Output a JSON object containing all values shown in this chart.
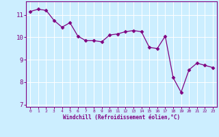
{
  "x": [
    0,
    1,
    2,
    3,
    4,
    5,
    6,
    7,
    8,
    9,
    10,
    11,
    12,
    13,
    14,
    15,
    16,
    17,
    18,
    19,
    20,
    21,
    22,
    23
  ],
  "y": [
    11.15,
    11.25,
    11.2,
    10.75,
    10.45,
    10.65,
    10.05,
    9.85,
    9.85,
    9.8,
    10.1,
    10.15,
    10.25,
    10.3,
    10.25,
    9.55,
    9.5,
    10.05,
    8.2,
    7.55,
    8.55,
    8.85,
    8.75,
    8.65
  ],
  "line_color": "#800080",
  "marker": "D",
  "marker_size": 2.5,
  "bg_color": "#cceeff",
  "grid_color": "#ffffff",
  "xlabel": "Windchill (Refroidissement éolien,°C)",
  "ylim": [
    6.9,
    11.6
  ],
  "xlim": [
    -0.5,
    23.5
  ],
  "yticks": [
    7,
    8,
    9,
    10,
    11
  ],
  "xticks": [
    0,
    1,
    2,
    3,
    4,
    5,
    6,
    7,
    8,
    9,
    10,
    11,
    12,
    13,
    14,
    15,
    16,
    17,
    18,
    19,
    20,
    21,
    22,
    23
  ],
  "xlabel_color": "#800080",
  "tick_color": "#800080",
  "spine_color": "#800080"
}
